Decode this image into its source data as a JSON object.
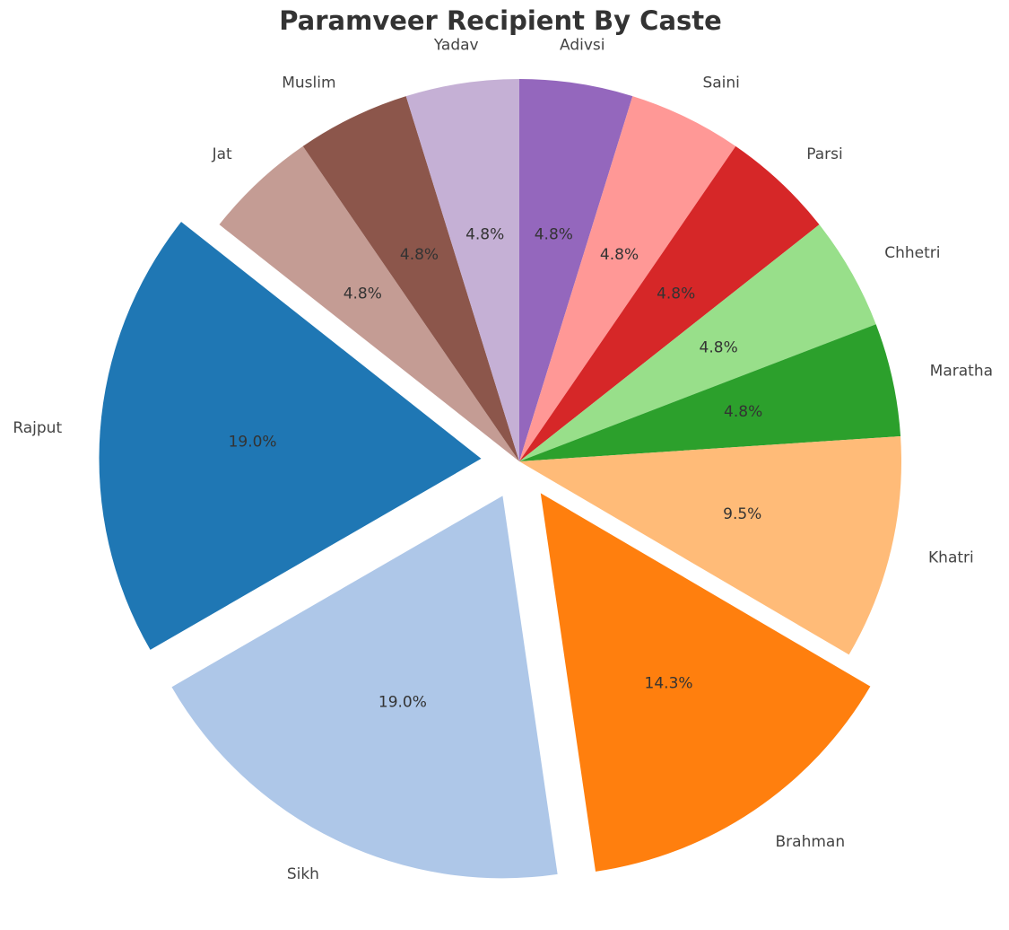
{
  "chart_data": {
    "type": "pie",
    "title": "Paramveer Recipient By Caste",
    "xlabel": "",
    "ylabel": "",
    "start_angle_deg": 90,
    "direction": "clockwise",
    "slices": [
      {
        "label": "Adivsi",
        "value": 4.8,
        "pct_label": "4.8%",
        "color": "#9467bd",
        "explode": 0
      },
      {
        "label": "Saini",
        "value": 4.8,
        "pct_label": "4.8%",
        "color": "#ff9896",
        "explode": 0
      },
      {
        "label": "Parsi",
        "value": 4.8,
        "pct_label": "4.8%",
        "color": "#d62728",
        "explode": 0
      },
      {
        "label": "Chhetri",
        "value": 4.8,
        "pct_label": "4.8%",
        "color": "#98df8a",
        "explode": 0
      },
      {
        "label": "Maratha",
        "value": 4.8,
        "pct_label": "4.8%",
        "color": "#2ca02c",
        "explode": 0
      },
      {
        "label": "Khatri",
        "value": 9.5,
        "pct_label": "9.5%",
        "color": "#ffbb78",
        "explode": 0
      },
      {
        "label": "Brahman",
        "value": 14.3,
        "pct_label": "14.3%",
        "color": "#ff7f0e",
        "explode": 0.1
      },
      {
        "label": "Sikh",
        "value": 19.0,
        "pct_label": "19.0%",
        "color": "#aec7e8",
        "explode": 0.1
      },
      {
        "label": "Rajput",
        "value": 19.0,
        "pct_label": "19.0%",
        "color": "#1f77b4",
        "explode": 0.1
      },
      {
        "label": "Jat",
        "value": 4.8,
        "pct_label": "4.8%",
        "color": "#c49c94",
        "explode": 0
      },
      {
        "label": "Muslim",
        "value": 4.8,
        "pct_label": "4.8%",
        "color": "#8c564b",
        "explode": 0
      },
      {
        "label": "Yadav",
        "value": 4.8,
        "pct_label": "4.8%",
        "color": "#c5b0d5",
        "explode": 0
      }
    ]
  }
}
